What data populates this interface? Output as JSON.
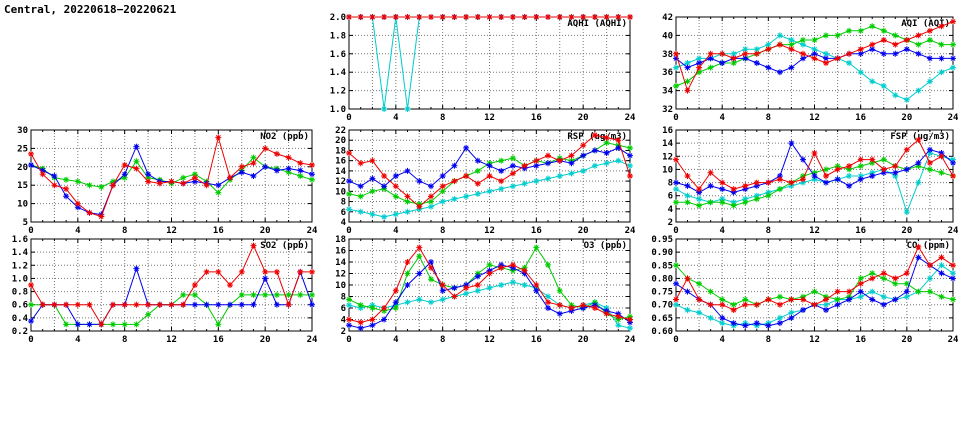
{
  "title": "Central, 20220618−20220621",
  "colors": {
    "red": "#ee0000",
    "blue": "#0000ee",
    "green": "#00cc00",
    "cyan": "#00cdcd",
    "grid": "#777777",
    "axis": "#000000"
  },
  "chart_data": [
    {
      "type": "line",
      "name": "aqhi",
      "title": "AQHI (AQHI)",
      "xlim": [
        0,
        24
      ],
      "xticks": [
        0,
        4,
        8,
        12,
        16,
        20,
        24
      ],
      "xgrid_step": 2,
      "ylim": [
        1.0,
        2.0
      ],
      "yticks": [
        1.0,
        1.2,
        1.4,
        1.6,
        1.8,
        2.0
      ],
      "y_decimals": 1,
      "series": [
        {
          "name": "red",
          "color": "#ee0000",
          "values": [
            2,
            2,
            2,
            2,
            2,
            2,
            2,
            2,
            2,
            2,
            2,
            2,
            2,
            2,
            2,
            2,
            2,
            2,
            2,
            2,
            2,
            2,
            2,
            2,
            2
          ]
        },
        {
          "name": "blue",
          "color": "#0000ee",
          "values": [
            2,
            2,
            2,
            2,
            2,
            2,
            2,
            2,
            2,
            2,
            2,
            2,
            2,
            2,
            2,
            2,
            2,
            2,
            2,
            2,
            2,
            2,
            2,
            2,
            2
          ]
        },
        {
          "name": "green",
          "color": "#00cc00",
          "values": [
            2,
            2,
            2,
            2,
            2,
            2,
            2,
            2,
            2,
            2,
            2,
            2,
            2,
            2,
            2,
            2,
            2,
            2,
            2,
            2,
            2,
            2,
            2,
            2,
            2
          ]
        },
        {
          "name": "cyan",
          "color": "#00cdcd",
          "values": [
            2,
            2,
            2,
            1,
            2,
            1,
            2,
            2,
            2,
            2,
            2,
            2,
            2,
            2,
            2,
            2,
            2,
            2,
            2,
            2,
            2,
            2,
            2,
            2,
            2
          ]
        }
      ]
    },
    {
      "type": "line",
      "name": "aqi",
      "title": "AQI (AQI)",
      "xlim": [
        0,
        24
      ],
      "xticks": [
        0,
        4,
        8,
        12,
        16,
        20,
        24
      ],
      "xgrid_step": 2,
      "ylim": [
        32,
        42
      ],
      "yticks": [
        32,
        34,
        36,
        38,
        40,
        42
      ],
      "y_decimals": 0,
      "series": [
        {
          "name": "red",
          "color": "#ee0000",
          "values": [
            38,
            34,
            36.5,
            38,
            38,
            37.5,
            38,
            38,
            38.5,
            39,
            38.5,
            38,
            37.5,
            37,
            37.5,
            38,
            38.5,
            39,
            39.5,
            39,
            39.5,
            40,
            40.5,
            41,
            41.5
          ]
        },
        {
          "name": "blue",
          "color": "#0000ee",
          "values": [
            37.5,
            36.5,
            37,
            37.5,
            37,
            37.5,
            37.5,
            37,
            36.5,
            36,
            36.5,
            37.5,
            38,
            37.5,
            37.5,
            38,
            38,
            38.5,
            38,
            38,
            38.5,
            38,
            37.5,
            37.5,
            37.5
          ]
        },
        {
          "name": "green",
          "color": "#00cc00",
          "values": [
            34.5,
            35,
            36,
            36.5,
            37,
            37,
            37.5,
            38,
            38.5,
            39,
            39,
            39.5,
            39.5,
            40,
            40,
            40.5,
            40.5,
            41,
            40.5,
            40,
            39.5,
            39,
            39.5,
            39,
            39
          ]
        },
        {
          "name": "cyan",
          "color": "#00cdcd",
          "values": [
            36.5,
            37,
            37.5,
            37.5,
            38,
            38,
            38.5,
            38.5,
            39,
            40,
            39.5,
            39,
            38.5,
            38,
            37.5,
            37,
            36,
            35,
            34.5,
            33.5,
            33,
            34,
            35,
            36,
            36.5
          ]
        }
      ]
    },
    {
      "type": "line",
      "name": "no2",
      "title": "NO2 (ppb)",
      "xlim": [
        0,
        24
      ],
      "xticks": [
        0,
        4,
        8,
        12,
        16,
        20,
        24
      ],
      "xgrid_step": 2,
      "ylim": [
        5,
        30
      ],
      "yticks": [
        5,
        10,
        15,
        20,
        25,
        30
      ],
      "y_decimals": 0,
      "series": [
        {
          "name": "red",
          "color": "#ee0000",
          "values": [
            23.5,
            18,
            15,
            14,
            10,
            7.5,
            6.5,
            15,
            20.5,
            19.5,
            16,
            15.5,
            16,
            15.5,
            17,
            15,
            28,
            17,
            20,
            21,
            25,
            23.5,
            22.5,
            21,
            20.5
          ]
        },
        {
          "name": "blue",
          "color": "#0000ee",
          "values": [
            20.5,
            19,
            17.5,
            12,
            9,
            7.5,
            7,
            15,
            18,
            25.5,
            18,
            16,
            16,
            15.5,
            16,
            15.5,
            15,
            17,
            18.5,
            17.5,
            20,
            19,
            19.5,
            19,
            18
          ]
        },
        {
          "name": "green",
          "color": "#00cc00",
          "values": [
            20.5,
            19.5,
            17,
            16.5,
            16,
            15,
            14.5,
            16,
            17,
            21.5,
            17,
            16.5,
            15.5,
            17,
            18,
            16,
            13,
            16.5,
            19,
            22.5,
            20,
            19.5,
            18.5,
            17.5,
            16.5
          ]
        }
      ]
    },
    {
      "type": "line",
      "name": "rsp",
      "title": "RSP (ug/m3)",
      "xlim": [
        0,
        24
      ],
      "xticks": [
        0,
        4,
        8,
        12,
        16,
        20,
        24
      ],
      "xgrid_step": 2,
      "ylim": [
        4,
        22
      ],
      "yticks": [
        4,
        6,
        8,
        10,
        12,
        14,
        16,
        18,
        20,
        22
      ],
      "y_decimals": 0,
      "series": [
        {
          "name": "red",
          "color": "#ee0000",
          "values": [
            17.5,
            15.5,
            16,
            13,
            11,
            9,
            7,
            9,
            11,
            12,
            13,
            11.5,
            13,
            12,
            13.5,
            15,
            16,
            17,
            16,
            17,
            19,
            21,
            20.5,
            20,
            13
          ]
        },
        {
          "name": "blue",
          "color": "#0000ee",
          "values": [
            12,
            11,
            12.5,
            11,
            13,
            14,
            12,
            11,
            13,
            15,
            18.5,
            16,
            15,
            14,
            15,
            14.5,
            15,
            15.5,
            16,
            15.5,
            17,
            18,
            17.5,
            18.5,
            17
          ]
        },
        {
          "name": "green",
          "color": "#00cc00",
          "values": [
            9.5,
            9,
            10,
            10.5,
            9,
            8,
            7.5,
            8,
            10,
            12,
            13,
            14,
            15.5,
            16,
            16.5,
            15,
            16,
            15.5,
            16.5,
            16,
            17,
            18,
            19.5,
            19,
            18.5
          ]
        },
        {
          "name": "cyan",
          "color": "#00cdcd",
          "values": [
            6.5,
            6,
            5.5,
            5,
            5.5,
            6,
            6.5,
            7,
            8,
            8.5,
            9,
            9.5,
            10,
            10.5,
            11,
            11.5,
            12,
            12.5,
            13,
            13.5,
            14,
            15,
            15.5,
            16,
            15
          ]
        }
      ]
    },
    {
      "type": "line",
      "name": "fsp",
      "title": "FSP (ug/m3)",
      "xlim": [
        0,
        24
      ],
      "xticks": [
        0,
        4,
        8,
        12,
        16,
        20,
        24
      ],
      "xgrid_step": 2,
      "ylim": [
        2,
        16
      ],
      "yticks": [
        2,
        4,
        6,
        8,
        10,
        12,
        14,
        16
      ],
      "y_decimals": 0,
      "series": [
        {
          "name": "red",
          "color": "#ee0000",
          "values": [
            11.5,
            9,
            7,
            9.5,
            8,
            7,
            7.5,
            8,
            8,
            8.5,
            8,
            8.5,
            12.5,
            9,
            10,
            10.5,
            11.5,
            11.5,
            10,
            10.5,
            13,
            14.5,
            11,
            12,
            9
          ]
        },
        {
          "name": "blue",
          "color": "#0000ee",
          "values": [
            8,
            7.5,
            6.5,
            7.5,
            7,
            6.5,
            7,
            7.5,
            8,
            9,
            14,
            11.5,
            9,
            8,
            8.5,
            7.5,
            8.5,
            9,
            9.5,
            9.5,
            10,
            11,
            13,
            12.5,
            11
          ]
        },
        {
          "name": "green",
          "color": "#00cc00",
          "values": [
            5,
            5,
            4.5,
            5,
            5,
            4.5,
            5,
            5.5,
            6,
            7,
            8,
            9,
            9.5,
            10,
            10.5,
            10,
            10.5,
            11,
            11.5,
            10.5,
            10,
            10.5,
            10,
            9.5,
            9
          ]
        },
        {
          "name": "cyan",
          "color": "#00cdcd",
          "values": [
            7,
            6,
            5.5,
            5,
            5.5,
            5,
            5.5,
            6,
            6.5,
            7,
            7.5,
            8,
            8.5,
            8,
            8.5,
            9,
            9,
            9.5,
            10,
            9,
            3.5,
            8,
            12.5,
            12,
            11.5
          ]
        }
      ]
    },
    {
      "type": "line",
      "name": "so2",
      "title": "SO2 (ppb)",
      "xlim": [
        0,
        24
      ],
      "xticks": [
        0,
        4,
        8,
        12,
        16,
        20,
        24
      ],
      "xgrid_step": 2,
      "ylim": [
        0.2,
        1.6
      ],
      "yticks": [
        0.2,
        0.4,
        0.6,
        0.8,
        1.0,
        1.2,
        1.4,
        1.6
      ],
      "y_decimals": 1,
      "series": [
        {
          "name": "red",
          "color": "#ee0000",
          "values": [
            0.9,
            0.6,
            0.6,
            0.6,
            0.6,
            0.6,
            0.3,
            0.6,
            0.6,
            0.6,
            0.6,
            0.6,
            0.6,
            0.6,
            0.9,
            1.1,
            1.1,
            0.9,
            1.1,
            1.5,
            1.1,
            1.1,
            0.6,
            1.1,
            1.1
          ]
        },
        {
          "name": "blue",
          "color": "#0000ee",
          "values": [
            0.35,
            0.6,
            0.6,
            0.6,
            0.3,
            0.3,
            0.3,
            0.6,
            0.6,
            1.15,
            0.6,
            0.6,
            0.6,
            0.6,
            0.6,
            0.6,
            0.6,
            0.6,
            0.6,
            0.6,
            1.0,
            0.6,
            0.6,
            1.1,
            0.6
          ]
        },
        {
          "name": "green",
          "color": "#00cc00",
          "values": [
            0.6,
            0.6,
            0.6,
            0.3,
            0.3,
            0.3,
            0.3,
            0.3,
            0.3,
            0.3,
            0.45,
            0.6,
            0.6,
            0.75,
            0.75,
            0.6,
            0.3,
            0.6,
            0.75,
            0.75,
            0.75,
            0.75,
            0.75,
            0.75,
            0.75
          ]
        }
      ]
    },
    {
      "type": "line",
      "name": "o3",
      "title": "O3 (ppb)",
      "xlim": [
        0,
        24
      ],
      "xticks": [
        0,
        4,
        8,
        12,
        16,
        20,
        24
      ],
      "xgrid_step": 2,
      "ylim": [
        2,
        18
      ],
      "yticks": [
        2,
        4,
        6,
        8,
        10,
        12,
        14,
        16,
        18
      ],
      "y_decimals": 0,
      "series": [
        {
          "name": "red",
          "color": "#ee0000",
          "values": [
            4,
            3.5,
            4,
            6,
            9,
            14,
            16.5,
            13,
            10,
            8,
            9.5,
            10,
            12,
            13,
            13.5,
            12.5,
            10,
            7,
            6.5,
            6,
            6.5,
            6,
            5,
            4.5,
            4
          ]
        },
        {
          "name": "blue",
          "color": "#0000ee",
          "values": [
            3,
            2.5,
            3,
            4,
            7,
            10,
            12,
            14,
            9,
            9.5,
            10,
            11.5,
            12.5,
            13.5,
            13,
            12,
            9,
            6,
            5,
            5.5,
            6,
            6.5,
            5.5,
            5,
            3.5
          ]
        },
        {
          "name": "green",
          "color": "#00cc00",
          "values": [
            7.5,
            6.5,
            6,
            5.5,
            6,
            12,
            15,
            11,
            10,
            9.5,
            10,
            12,
            13.5,
            13,
            12.5,
            13,
            16.5,
            13.5,
            9,
            6.5,
            6,
            7,
            5,
            4,
            4.5
          ]
        },
        {
          "name": "cyan",
          "color": "#00cdcd",
          "values": [
            6.5,
            6,
            6.5,
            6,
            6.5,
            7,
            7.5,
            7,
            7.5,
            8,
            8.5,
            9,
            9.5,
            10,
            10.5,
            10,
            9.5,
            8,
            6.5,
            6,
            6.5,
            7,
            6,
            3,
            2.5
          ]
        }
      ]
    },
    {
      "type": "line",
      "name": "co",
      "title": "CO (ppm)",
      "xlim": [
        0,
        24
      ],
      "xticks": [
        0,
        4,
        8,
        12,
        16,
        20,
        24
      ],
      "xgrid_step": 2,
      "ylim": [
        0.6,
        0.95
      ],
      "yticks": [
        0.6,
        0.65,
        0.7,
        0.75,
        0.8,
        0.85,
        0.9,
        0.95
      ],
      "y_decimals": 2,
      "series": [
        {
          "name": "red",
          "color": "#ee0000",
          "values": [
            0.72,
            0.8,
            0.72,
            0.7,
            0.7,
            0.68,
            0.7,
            0.7,
            0.72,
            0.7,
            0.72,
            0.72,
            0.7,
            0.72,
            0.75,
            0.75,
            0.78,
            0.8,
            0.82,
            0.8,
            0.82,
            0.92,
            0.85,
            0.88,
            0.85
          ]
        },
        {
          "name": "blue",
          "color": "#0000ee",
          "values": [
            0.78,
            0.75,
            0.72,
            0.7,
            0.65,
            0.63,
            0.62,
            0.63,
            0.62,
            0.63,
            0.65,
            0.68,
            0.7,
            0.68,
            0.7,
            0.72,
            0.75,
            0.72,
            0.7,
            0.72,
            0.75,
            0.88,
            0.85,
            0.82,
            0.8
          ]
        },
        {
          "name": "green",
          "color": "#00cc00",
          "values": [
            0.85,
            0.8,
            0.78,
            0.75,
            0.72,
            0.7,
            0.72,
            0.7,
            0.72,
            0.73,
            0.72,
            0.73,
            0.75,
            0.73,
            0.72,
            0.73,
            0.8,
            0.82,
            0.8,
            0.78,
            0.78,
            0.75,
            0.75,
            0.73,
            0.72
          ]
        },
        {
          "name": "cyan",
          "color": "#00cdcd",
          "values": [
            0.7,
            0.68,
            0.67,
            0.65,
            0.63,
            0.62,
            0.63,
            0.62,
            0.63,
            0.65,
            0.67,
            0.68,
            0.7,
            0.7,
            0.72,
            0.72,
            0.73,
            0.75,
            0.73,
            0.72,
            0.73,
            0.75,
            0.8,
            0.85,
            0.82
          ]
        }
      ]
    }
  ]
}
